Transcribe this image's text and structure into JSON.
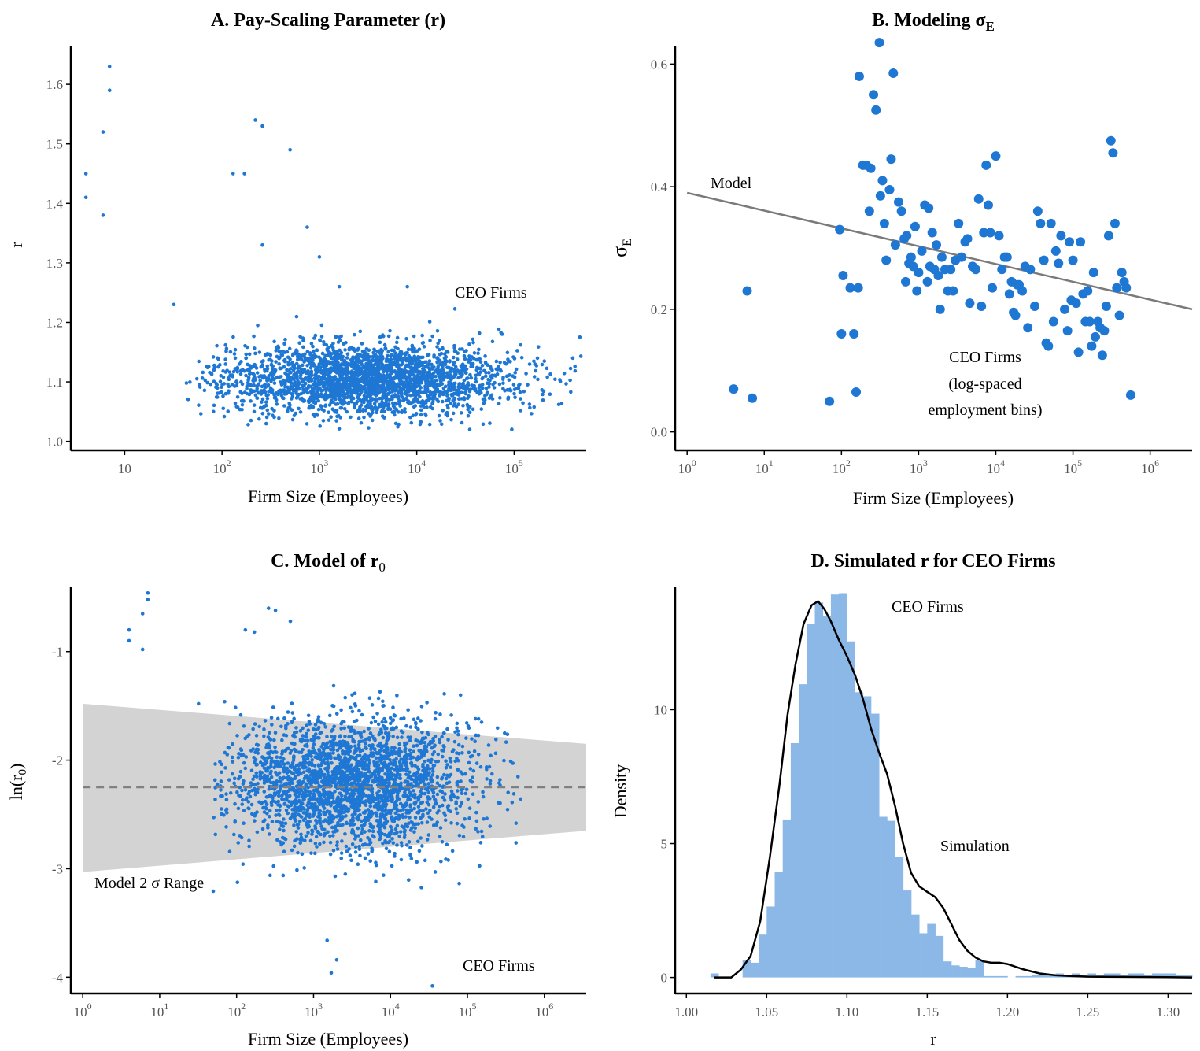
{
  "colors": {
    "point": "#1f77d4",
    "model_line": "#7a7a7a",
    "band": "#d3d3d3",
    "hist": "#8bb8e6",
    "density": "#000000",
    "axis": "#000000"
  },
  "chart_data": [
    {
      "id": "A",
      "type": "scatter",
      "title": "A.  Pay-Scaling Parameter (r)",
      "xlabel": "Firm Size (Employees)",
      "ylabel": "r",
      "x_scale": "log10",
      "xlim": [
        2.8,
        550000
      ],
      "ylim": [
        0.985,
        1.665
      ],
      "x_ticks": [
        "10",
        "10^2",
        "10^3",
        "10^4",
        "10^5"
      ],
      "y_ticks": [
        "1.0",
        "1.1",
        "1.2",
        "1.3",
        "1.4",
        "1.5",
        "1.6"
      ],
      "annotations": [
        "CEO Firms"
      ],
      "series": [
        {
          "name": "CEO Firms",
          "highlight_points": [
            [
              4,
              1.45
            ],
            [
              4,
              1.41
            ],
            [
              6,
              1.52
            ],
            [
              6,
              1.38
            ],
            [
              7,
              1.63
            ],
            [
              7,
              1.59
            ],
            [
              32,
              1.23
            ],
            [
              130,
              1.45
            ],
            [
              170,
              1.45
            ],
            [
              220,
              1.54
            ],
            [
              260,
              1.53
            ],
            [
              260,
              1.33
            ],
            [
              500,
              1.49
            ],
            [
              750,
              1.36
            ],
            [
              1000,
              1.31
            ],
            [
              1600,
              1.26
            ],
            [
              8000,
              1.26
            ],
            [
              35000,
              1.02
            ],
            [
              400000,
              1.14
            ]
          ],
          "cloud": {
            "n": 2600,
            "log10_x_range": [
              1.6,
              5.7
            ],
            "log10_x_center": 3.5,
            "log10_x_sd": 0.75,
            "y_center": 1.105,
            "y_sd": 0.03,
            "y_range": [
              1.02,
              1.26
            ]
          }
        }
      ]
    },
    {
      "id": "B",
      "type": "scatter",
      "title": "B.  Modeling σ",
      "title_sub": "E",
      "xlabel": "Firm Size (Employees)",
      "ylabel": "σ",
      "ylabel_sub": "E",
      "x_scale": "log10",
      "xlim": [
        0.7,
        3500000
      ],
      "ylim": [
        -0.03,
        0.63
      ],
      "x_ticks": [
        "10^0",
        "10^1",
        "10^2",
        "10^3",
        "10^4",
        "10^5",
        "10^6"
      ],
      "y_ticks": [
        "0.0",
        "0.2",
        "0.4",
        "0.6"
      ],
      "annotations": [
        "Model",
        "CEO Firms",
        "(log-spaced",
        "employment bins)"
      ],
      "model_line": {
        "name": "Model",
        "points": [
          [
            1,
            0.39
          ],
          [
            3500000,
            0.2
          ]
        ]
      },
      "series": [
        {
          "name": "CEO Firms",
          "points": [
            [
              4,
              0.07
            ],
            [
              6,
              0.23
            ],
            [
              7,
              0.055
            ],
            [
              70,
              0.05
            ],
            [
              95,
              0.33
            ],
            [
              100,
              0.16
            ],
            [
              105,
              0.255
            ],
            [
              130,
              0.235
            ],
            [
              145,
              0.16
            ],
            [
              155,
              0.065
            ],
            [
              165,
              0.235
            ],
            [
              170,
              0.58
            ],
            [
              190,
              0.435
            ],
            [
              210,
              0.435
            ],
            [
              230,
              0.36
            ],
            [
              240,
              0.43
            ],
            [
              260,
              0.55
            ],
            [
              280,
              0.525
            ],
            [
              310,
              0.635
            ],
            [
              320,
              0.385
            ],
            [
              340,
              0.41
            ],
            [
              360,
              0.34
            ],
            [
              380,
              0.28
            ],
            [
              420,
              0.395
            ],
            [
              440,
              0.445
            ],
            [
              470,
              0.585
            ],
            [
              500,
              0.305
            ],
            [
              550,
              0.375
            ],
            [
              600,
              0.36
            ],
            [
              650,
              0.315
            ],
            [
              680,
              0.245
            ],
            [
              700,
              0.32
            ],
            [
              750,
              0.275
            ],
            [
              800,
              0.285
            ],
            [
              850,
              0.27
            ],
            [
              900,
              0.335
            ],
            [
              950,
              0.23
            ],
            [
              1000,
              0.26
            ],
            [
              1100,
              0.295
            ],
            [
              1200,
              0.37
            ],
            [
              1300,
              0.245
            ],
            [
              1350,
              0.365
            ],
            [
              1400,
              0.27
            ],
            [
              1500,
              0.325
            ],
            [
              1600,
              0.265
            ],
            [
              1700,
              0.305
            ],
            [
              1800,
              0.255
            ],
            [
              1900,
              0.2
            ],
            [
              2000,
              0.285
            ],
            [
              2200,
              0.265
            ],
            [
              2400,
              0.23
            ],
            [
              2600,
              0.265
            ],
            [
              2800,
              0.23
            ],
            [
              3000,
              0.28
            ],
            [
              3300,
              0.34
            ],
            [
              3600,
              0.285
            ],
            [
              4000,
              0.31
            ],
            [
              4300,
              0.315
            ],
            [
              4600,
              0.21
            ],
            [
              5000,
              0.27
            ],
            [
              5500,
              0.265
            ],
            [
              6000,
              0.38
            ],
            [
              6500,
              0.205
            ],
            [
              7000,
              0.325
            ],
            [
              7500,
              0.435
            ],
            [
              8000,
              0.37
            ],
            [
              8500,
              0.325
            ],
            [
              9000,
              0.235
            ],
            [
              10000,
              0.45
            ],
            [
              11000,
              0.32
            ],
            [
              12000,
              0.265
            ],
            [
              13000,
              0.285
            ],
            [
              14000,
              0.285
            ],
            [
              15000,
              0.225
            ],
            [
              16000,
              0.245
            ],
            [
              17000,
              0.195
            ],
            [
              18000,
              0.19
            ],
            [
              19000,
              0.24
            ],
            [
              20000,
              0.24
            ],
            [
              22000,
              0.23
            ],
            [
              24000,
              0.27
            ],
            [
              26000,
              0.17
            ],
            [
              28000,
              0.265
            ],
            [
              32000,
              0.205
            ],
            [
              35000,
              0.36
            ],
            [
              38000,
              0.34
            ],
            [
              42000,
              0.28
            ],
            [
              45000,
              0.145
            ],
            [
              48000,
              0.14
            ],
            [
              52000,
              0.34
            ],
            [
              56000,
              0.18
            ],
            [
              60000,
              0.295
            ],
            [
              65000,
              0.275
            ],
            [
              70000,
              0.32
            ],
            [
              78000,
              0.2
            ],
            [
              85000,
              0.165
            ],
            [
              90000,
              0.31
            ],
            [
              95000,
              0.215
            ],
            [
              100000,
              0.28
            ],
            [
              110000,
              0.21
            ],
            [
              118000,
              0.13
            ],
            [
              125000,
              0.31
            ],
            [
              135000,
              0.225
            ],
            [
              145000,
              0.18
            ],
            [
              155000,
              0.23
            ],
            [
              165000,
              0.18
            ],
            [
              175000,
              0.14
            ],
            [
              185000,
              0.26
            ],
            [
              195000,
              0.155
            ],
            [
              210000,
              0.18
            ],
            [
              225000,
              0.17
            ],
            [
              240000,
              0.125
            ],
            [
              255000,
              0.165
            ],
            [
              270000,
              0.205
            ],
            [
              290000,
              0.32
            ],
            [
              310000,
              0.475
            ],
            [
              330000,
              0.455
            ],
            [
              350000,
              0.34
            ],
            [
              370000,
              0.235
            ],
            [
              400000,
              0.19
            ],
            [
              430000,
              0.26
            ],
            [
              460000,
              0.245
            ],
            [
              490000,
              0.235
            ],
            [
              560000,
              0.06
            ]
          ]
        }
      ]
    },
    {
      "id": "C",
      "type": "scatter",
      "title": "C.  Model of r",
      "title_sub": "0",
      "xlabel": "Firm Size (Employees)",
      "ylabel": "ln(r",
      "ylabel_sub": "0",
      "ylabel_end": ")",
      "x_scale": "log10",
      "xlim": [
        0.7,
        3500000
      ],
      "ylim": [
        -4.15,
        -0.4
      ],
      "x_ticks": [
        "10^0",
        "10^1",
        "10^2",
        "10^3",
        "10^4",
        "10^5",
        "10^6"
      ],
      "y_ticks": [
        "-1",
        "-2",
        "-3",
        "-4"
      ],
      "annotations": [
        "Model 2 σ Range",
        "CEO Firms"
      ],
      "model_mean": {
        "points": [
          [
            1,
            -2.25
          ],
          [
            3500000,
            -2.25
          ]
        ]
      },
      "model_band": {
        "name": "Model 2 σ Range",
        "upper": [
          [
            1,
            -1.48
          ],
          [
            3500000,
            -1.85
          ]
        ],
        "lower": [
          [
            1,
            -3.03
          ],
          [
            3500000,
            -2.65
          ]
        ]
      },
      "series": [
        {
          "name": "CEO Firms",
          "highlight_points": [
            [
              4,
              -0.8
            ],
            [
              4,
              -0.9
            ],
            [
              6,
              -0.65
            ],
            [
              6,
              -0.98
            ],
            [
              7,
              -0.46
            ],
            [
              7,
              -0.52
            ],
            [
              32,
              -1.48
            ],
            [
              130,
              -0.8
            ],
            [
              170,
              -0.82
            ],
            [
              260,
              -0.6
            ],
            [
              320,
              -0.62
            ],
            [
              500,
              -0.72
            ],
            [
              1500,
              -3.66
            ],
            [
              1700,
              -3.96
            ],
            [
              2000,
              -3.84
            ],
            [
              35000,
              -4.08
            ]
          ],
          "cloud": {
            "n": 2600,
            "log10_x_range": [
              1.6,
              5.7
            ],
            "log10_x_center": 3.5,
            "log10_x_sd": 0.75,
            "y_center": -2.2,
            "y_sd": 0.3,
            "y_range": [
              -3.5,
              -1.3
            ]
          }
        }
      ]
    },
    {
      "id": "D",
      "type": "bar",
      "title": "D.  Simulated r for CEO Firms",
      "xlabel": "r",
      "ylabel": "Density",
      "xlim": [
        0.993,
        1.315
      ],
      "ylim": [
        -0.6,
        14.6
      ],
      "x_ticks": [
        "1.00",
        "1.05",
        "1.10",
        "1.15",
        "1.20",
        "1.25",
        "1.30"
      ],
      "y_ticks": [
        "0",
        "5",
        "10"
      ],
      "annotations": [
        "CEO Firms",
        "Simulation"
      ],
      "histogram": {
        "name": "Simulation",
        "bin_start": 1.015,
        "bin_width": 0.005,
        "densities": [
          0.15,
          0.0,
          0.0,
          0.0,
          0.65,
          0.55,
          1.6,
          2.65,
          3.95,
          5.9,
          8.75,
          10.95,
          13.2,
          14.0,
          13.5,
          14.3,
          14.35,
          12.55,
          10.65,
          10.5,
          9.85,
          6.0,
          5.85,
          4.5,
          3.25,
          2.35,
          1.65,
          2.0,
          1.55,
          0.6,
          0.45,
          0.4,
          0.35,
          0.65,
          0.05,
          0.05,
          0.05,
          0.0,
          0.05,
          0.05,
          0.1,
          0.15,
          0.1,
          0.15,
          0.1,
          0.15,
          0.1,
          0.15,
          0.1,
          0.15,
          0.15,
          0.1,
          0.15,
          0.15,
          0.1,
          0.15,
          0.15,
          0.15,
          0.1,
          0.1
        ]
      },
      "density_curve": {
        "name": "CEO Firms",
        "points": [
          [
            1.017,
            0.0
          ],
          [
            1.028,
            0.0
          ],
          [
            1.034,
            0.3
          ],
          [
            1.04,
            0.8
          ],
          [
            1.046,
            2.1
          ],
          [
            1.052,
            4.5
          ],
          [
            1.058,
            7.2
          ],
          [
            1.063,
            9.8
          ],
          [
            1.068,
            11.7
          ],
          [
            1.073,
            13.2
          ],
          [
            1.078,
            13.9
          ],
          [
            1.082,
            14.05
          ],
          [
            1.086,
            13.75
          ],
          [
            1.09,
            13.3
          ],
          [
            1.095,
            12.6
          ],
          [
            1.1,
            12.0
          ],
          [
            1.105,
            11.3
          ],
          [
            1.11,
            10.4
          ],
          [
            1.115,
            9.3
          ],
          [
            1.12,
            8.4
          ],
          [
            1.125,
            7.6
          ],
          [
            1.13,
            6.4
          ],
          [
            1.135,
            5.0
          ],
          [
            1.14,
            3.9
          ],
          [
            1.145,
            3.4
          ],
          [
            1.15,
            3.2
          ],
          [
            1.155,
            3.0
          ],
          [
            1.16,
            2.6
          ],
          [
            1.165,
            2.0
          ],
          [
            1.17,
            1.4
          ],
          [
            1.175,
            1.0
          ],
          [
            1.18,
            0.75
          ],
          [
            1.185,
            0.6
          ],
          [
            1.19,
            0.55
          ],
          [
            1.195,
            0.55
          ],
          [
            1.2,
            0.5
          ],
          [
            1.205,
            0.4
          ],
          [
            1.21,
            0.3
          ],
          [
            1.22,
            0.15
          ],
          [
            1.23,
            0.08
          ],
          [
            1.24,
            0.05
          ],
          [
            1.25,
            0.03
          ],
          [
            1.27,
            0.02
          ],
          [
            1.3,
            0.01
          ],
          [
            1.315,
            0.0
          ]
        ]
      }
    }
  ]
}
